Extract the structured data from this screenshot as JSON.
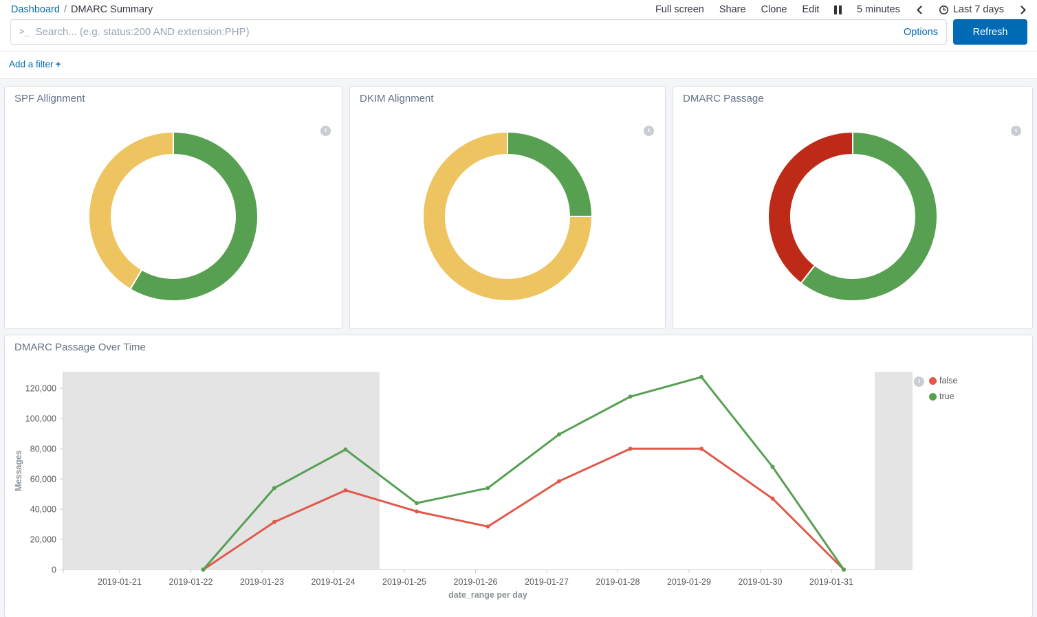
{
  "breadcrumb": {
    "root": "Dashboard",
    "separator": "/",
    "current": "DMARC Summary"
  },
  "top_nav": {
    "items": [
      "Full screen",
      "Share",
      "Clone",
      "Edit"
    ],
    "refresh_interval": "5 minutes",
    "time_range": "Last 7 days"
  },
  "query_bar": {
    "placeholder": "Search... (e.g. status:200 AND extension:PHP)",
    "options_label": "Options",
    "refresh_label": "Refresh"
  },
  "filter_bar": {
    "add_filter_label": "Add a filter",
    "plus": "+"
  },
  "colors": {
    "accent_blue": "#006BB4",
    "pass_green": "#57A052",
    "warn_yellow": "#EDC45F",
    "donut_red": "#BD2A17",
    "line_red": "#E0594B",
    "shaded_band": "#E4E4E4",
    "axis_line": "#D9D9D9",
    "tick_text": "#54565A",
    "axis_title_text": "#8B9298"
  },
  "chart_data": [
    {
      "id": "spf-alignment",
      "type": "pie",
      "title": "SPF Allignment",
      "donut": true,
      "slices": [
        {
          "value": 58.5,
          "color": "#57A052"
        },
        {
          "value": 41.5,
          "color": "#EDC45F"
        }
      ]
    },
    {
      "id": "dkim-alignment",
      "type": "pie",
      "title": "DKIM Alignment",
      "donut": true,
      "slices": [
        {
          "value": 25,
          "color": "#57A052"
        },
        {
          "value": 75,
          "color": "#EDC45F"
        }
      ]
    },
    {
      "id": "dmarc-passage",
      "type": "pie",
      "title": "DMARC Passage",
      "donut": true,
      "slices": [
        {
          "value": 60.5,
          "color": "#57A052"
        },
        {
          "value": 39.5,
          "color": "#BD2A17"
        }
      ]
    },
    {
      "id": "dmarc-passage-over-time",
      "type": "line",
      "title": "DMARC Passage Over Time",
      "xlabel": "date_range per day",
      "ylabel": "Messages",
      "x": [
        "2019-01-21",
        "2019-01-22",
        "2019-01-23",
        "2019-01-24",
        "2019-01-25",
        "2019-01-26",
        "2019-01-27",
        "2019-01-28",
        "2019-01-29",
        "2019-01-30",
        "2019-01-31"
      ],
      "series": [
        {
          "name": "false",
          "color": "#E0594B",
          "values": [
            null,
            0,
            31500,
            52500,
            38500,
            28500,
            58500,
            80000,
            80000,
            47000,
            0
          ]
        },
        {
          "name": "true",
          "color": "#57A052",
          "values": [
            null,
            0,
            54000,
            79500,
            44000,
            54000,
            89500,
            114500,
            127500,
            68000,
            0
          ]
        }
      ],
      "ylim": [
        0,
        131000
      ],
      "yticks": [
        0,
        20000,
        40000,
        60000,
        80000,
        100000,
        120000
      ],
      "legend_position": "right",
      "grid": false,
      "shaded_x_fractions": [
        [
          0,
          0.3725
        ],
        [
          0.9555,
          1
        ]
      ]
    }
  ]
}
